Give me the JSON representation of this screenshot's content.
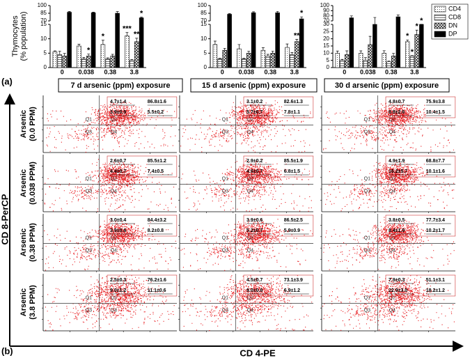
{
  "figure_labels": {
    "a": "(a)",
    "b": "(b)"
  },
  "chart_data": [
    {
      "type": "bar",
      "ylabel": [
        "Thymocytes",
        "(% population)"
      ],
      "categories": [
        "0",
        "0.038",
        "0.38",
        "3.8"
      ],
      "ylim": [
        0,
        100
      ],
      "axis_break": [
        15,
        70
      ],
      "yticks": [
        0,
        5,
        10,
        15,
        70,
        85,
        100
      ],
      "series": [
        {
          "color": "#ffffff",
          "pattern": "dots",
          "values": [
            5.5,
            7.5,
            8,
            11
          ],
          "errors": [
            0.3,
            0.6,
            1.5,
            1.2
          ],
          "value_labels": [
            null,
            null,
            "*",
            "***"
          ]
        },
        {
          "color": "#ffffff",
          "pattern": "lines",
          "values": [
            4.5,
            3,
            3,
            2.5
          ],
          "errors": [
            1.2,
            0.5,
            0.4,
            0.3
          ],
          "value_labels": [
            null,
            null,
            null,
            null
          ]
        },
        {
          "color": "#ffffff",
          "pattern": "cross",
          "values": [
            4,
            4,
            4,
            9
          ],
          "errors": [
            0.9,
            0.7,
            0.6,
            1.2
          ],
          "value_labels": [
            null,
            "*",
            null,
            "**"
          ]
        },
        {
          "color": "#000000",
          "pattern": "solid",
          "values": [
            87,
            86,
            85,
            76
          ],
          "errors": [
            1.6,
            1.2,
            3.2,
            1.6
          ],
          "value_labels": [
            null,
            null,
            null,
            "*"
          ]
        }
      ]
    },
    {
      "type": "bar",
      "categories": [
        "0",
        "0.038",
        "0.38",
        "3.8"
      ],
      "ylim": [
        0,
        100
      ],
      "axis_break": [
        15,
        70
      ],
      "yticks": [
        0,
        5,
        10,
        15,
        70,
        85,
        100
      ],
      "series": [
        {
          "color": "#ffffff",
          "pattern": "dots",
          "values": [
            8,
            6.5,
            6,
            7
          ],
          "errors": [
            1.2,
            1.5,
            0.9,
            1.2
          ],
          "value_labels": [
            null,
            null,
            null,
            null
          ]
        },
        {
          "color": "#ffffff",
          "pattern": "lines",
          "values": [
            3,
            3,
            4,
            4.5
          ],
          "errors": [
            0.2,
            0.2,
            0.6,
            0.7
          ],
          "value_labels": [
            null,
            null,
            null,
            null
          ]
        },
        {
          "color": "#ffffff",
          "pattern": "cross",
          "values": [
            6,
            5,
            5,
            9
          ],
          "errors": [
            0.7,
            0.7,
            0.7,
            0.8
          ],
          "value_labels": [
            null,
            null,
            null,
            "**"
          ]
        },
        {
          "color": "#000000",
          "pattern": "solid",
          "values": [
            83,
            86,
            86,
            74
          ],
          "errors": [
            1.3,
            1.9,
            2.5,
            3.9
          ],
          "value_labels": [
            null,
            null,
            null,
            "*"
          ]
        }
      ]
    },
    {
      "type": "bar",
      "categories": [
        "0",
        "0.038",
        "0.38",
        "3.8"
      ],
      "ylim": [
        0,
        100
      ],
      "axis_break": [
        30,
        70
      ],
      "yticks": [
        0,
        5,
        10,
        15,
        20,
        25,
        30,
        70,
        80,
        90,
        100
      ],
      "legend": "upper right",
      "series": [
        {
          "name": "CD4",
          "color": "#ffffff",
          "pattern": "dots",
          "values": [
            10,
            10,
            10,
            18
          ],
          "errors": [
            1.5,
            1.6,
            1.7,
            1.2
          ],
          "value_labels": [
            null,
            null,
            null,
            "*"
          ]
        },
        {
          "name": "CD8",
          "color": "#ffffff",
          "pattern": "lines",
          "values": [
            5,
            5,
            4,
            8
          ],
          "errors": [
            0.7,
            1.9,
            0.5,
            0.3
          ],
          "value_labels": [
            null,
            null,
            null,
            "*"
          ]
        },
        {
          "name": "DN",
          "color": "#ffffff",
          "pattern": "cross",
          "values": [
            9,
            16,
            8,
            23
          ],
          "errors": [
            2.6,
            5.7,
            1.9,
            3.0
          ],
          "value_labels": [
            null,
            null,
            null,
            "*"
          ]
        },
        {
          "name": "DP",
          "color": "#000000",
          "pattern": "solid",
          "values": [
            76,
            69,
            78,
            51
          ],
          "errors": [
            3.8,
            7.7,
            3.4,
            3.1
          ],
          "value_labels": [
            null,
            null,
            null,
            "*"
          ]
        }
      ]
    }
  ],
  "flow": {
    "y_axis": "CD 8-PerCP",
    "x_axis": "CD 4-PE",
    "columns": [
      "7 d arsenic (ppm) exposure",
      "15 d arsenic (ppm) exposure",
      "30 d arsenic (ppm) exposure"
    ],
    "rows": [
      [
        "Arsenic",
        "(0.0 PPM)"
      ],
      [
        "Arsenic",
        "(0.038 PPM)"
      ],
      [
        "Arsenic",
        "(0.38 PPM)"
      ],
      [
        "Arsenic",
        "(3.8 PPM)"
      ]
    ],
    "quadrants": [
      "Q1",
      "Q2",
      "Q3",
      "Q4"
    ],
    "panels": [
      [
        [
          "4.7±1.4",
          "86.8±1.6",
          "3.9±0.9",
          "5.5±0.2"
        ],
        [
          "3.1±0.2",
          "82.6±1.3",
          "5.7±0.7",
          "7.8±1.1"
        ],
        [
          "4.8±0.7",
          "75.9±3.8",
          "8.8±2.6",
          "10.4±1.5"
        ]
      ],
      [
        [
          "2.6±0.7",
          "85.5±1.2",
          "4.4±0.7",
          "7.4±0.5"
        ],
        [
          "2.9±0.2",
          "85.5±1.9",
          "4.6±0.7",
          "6.8±1.5"
        ],
        [
          "4.9±1.9",
          "68.8±7.7",
          "16.2±5.7",
          "10.1±1.6"
        ]
      ],
      [
        [
          "3.0±0.4",
          "84.4±3.2",
          "3.9±0.6",
          "8.2±0.8"
        ],
        [
          "3.9±0.6",
          "86.5±2.5",
          "5.2±0.7",
          "5.9±0.9"
        ],
        [
          "3.8±0.5",
          "77.7±3.4",
          "8.4±1.9",
          "10.2±1.7"
        ]
      ],
      [
        [
          "2.5±0.3",
          "76.2±1.6",
          "9.0±1.2",
          "11.1±0.6"
        ],
        [
          "4.5±0.7",
          "73.1±3.9",
          "9.0±0.8",
          "6.9±1.2"
        ],
        [
          "7.9±0.3",
          "51.1±3.1",
          "22.9±3.0",
          "18.2±1.2"
        ]
      ]
    ]
  }
}
